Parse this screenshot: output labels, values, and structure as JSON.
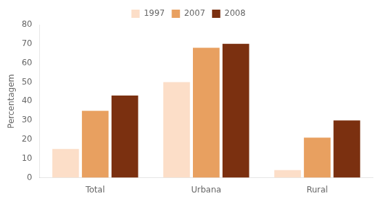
{
  "chart_data": {
    "type": "bar",
    "ylabel": "Percentagem",
    "categories": [
      "Total",
      "Urbana",
      "Rural"
    ],
    "series": [
      {
        "name": "1997",
        "color": "#FCDEC8",
        "values": [
          15,
          50,
          4
        ]
      },
      {
        "name": "2007",
        "color": "#E8A060",
        "values": [
          35,
          68,
          21
        ]
      },
      {
        "name": "2008",
        "color": "#7B3010",
        "values": [
          43,
          70,
          30
        ]
      }
    ],
    "ylim": [
      0,
      80
    ],
    "yticks": [
      0,
      10,
      20,
      30,
      40,
      50,
      60,
      70,
      80
    ],
    "grid": false,
    "legend": "top"
  }
}
